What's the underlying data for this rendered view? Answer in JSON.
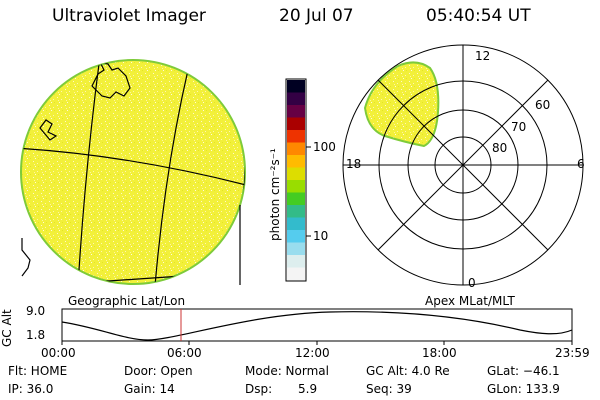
{
  "header": {
    "title": "Ultraviolet Imager",
    "date": "20 Jul 07",
    "time": "05:40:54 UT"
  },
  "colorbar": {
    "unit_label": "photon cm⁻²s⁻¹",
    "ticks": [
      "100",
      "10"
    ],
    "stops": [
      "#000022",
      "#330044",
      "#660044",
      "#aa0000",
      "#ee3300",
      "#ff8800",
      "#ffbb00",
      "#dddd00",
      "#99dd00",
      "#44cc22",
      "#33bb88",
      "#33bbcc",
      "#55ccee",
      "#99ddee",
      "#ddeeee",
      "#f4f4f4"
    ]
  },
  "polar": {
    "mlt_labels": [
      "12",
      "18",
      "6",
      "0"
    ],
    "mlat_labels": [
      "60",
      "70",
      "80"
    ]
  },
  "panels": {
    "left_label": "Geographic Lat/Lon",
    "right_label": "Apex MLat/MLT"
  },
  "altitude_plot": {
    "ylabel": "GC Alt",
    "yticks": [
      "9.0",
      "1.8"
    ],
    "xticks": [
      "00:00",
      "06:00",
      "12:00",
      "18:00",
      "23:59"
    ],
    "marker_time": "05:40"
  },
  "info": {
    "flt": "Flt: HOME",
    "ip": "IP: 36.0",
    "door": "Door: Open",
    "gain": "Gain: 14",
    "mode": "Mode: Normal",
    "dsp_label": "Dsp:",
    "dsp_value": "5.9",
    "gcalt": "GC Alt: 4.0 Re",
    "seq": "Seq: 39",
    "glat": "GLat: −46.1",
    "glon": "GLon: 133.9"
  },
  "colors": {
    "disk_fill": "#f2f03a",
    "disk_edge": "#7ecb3a",
    "grid": "#000000",
    "marker": "#cc3333"
  }
}
